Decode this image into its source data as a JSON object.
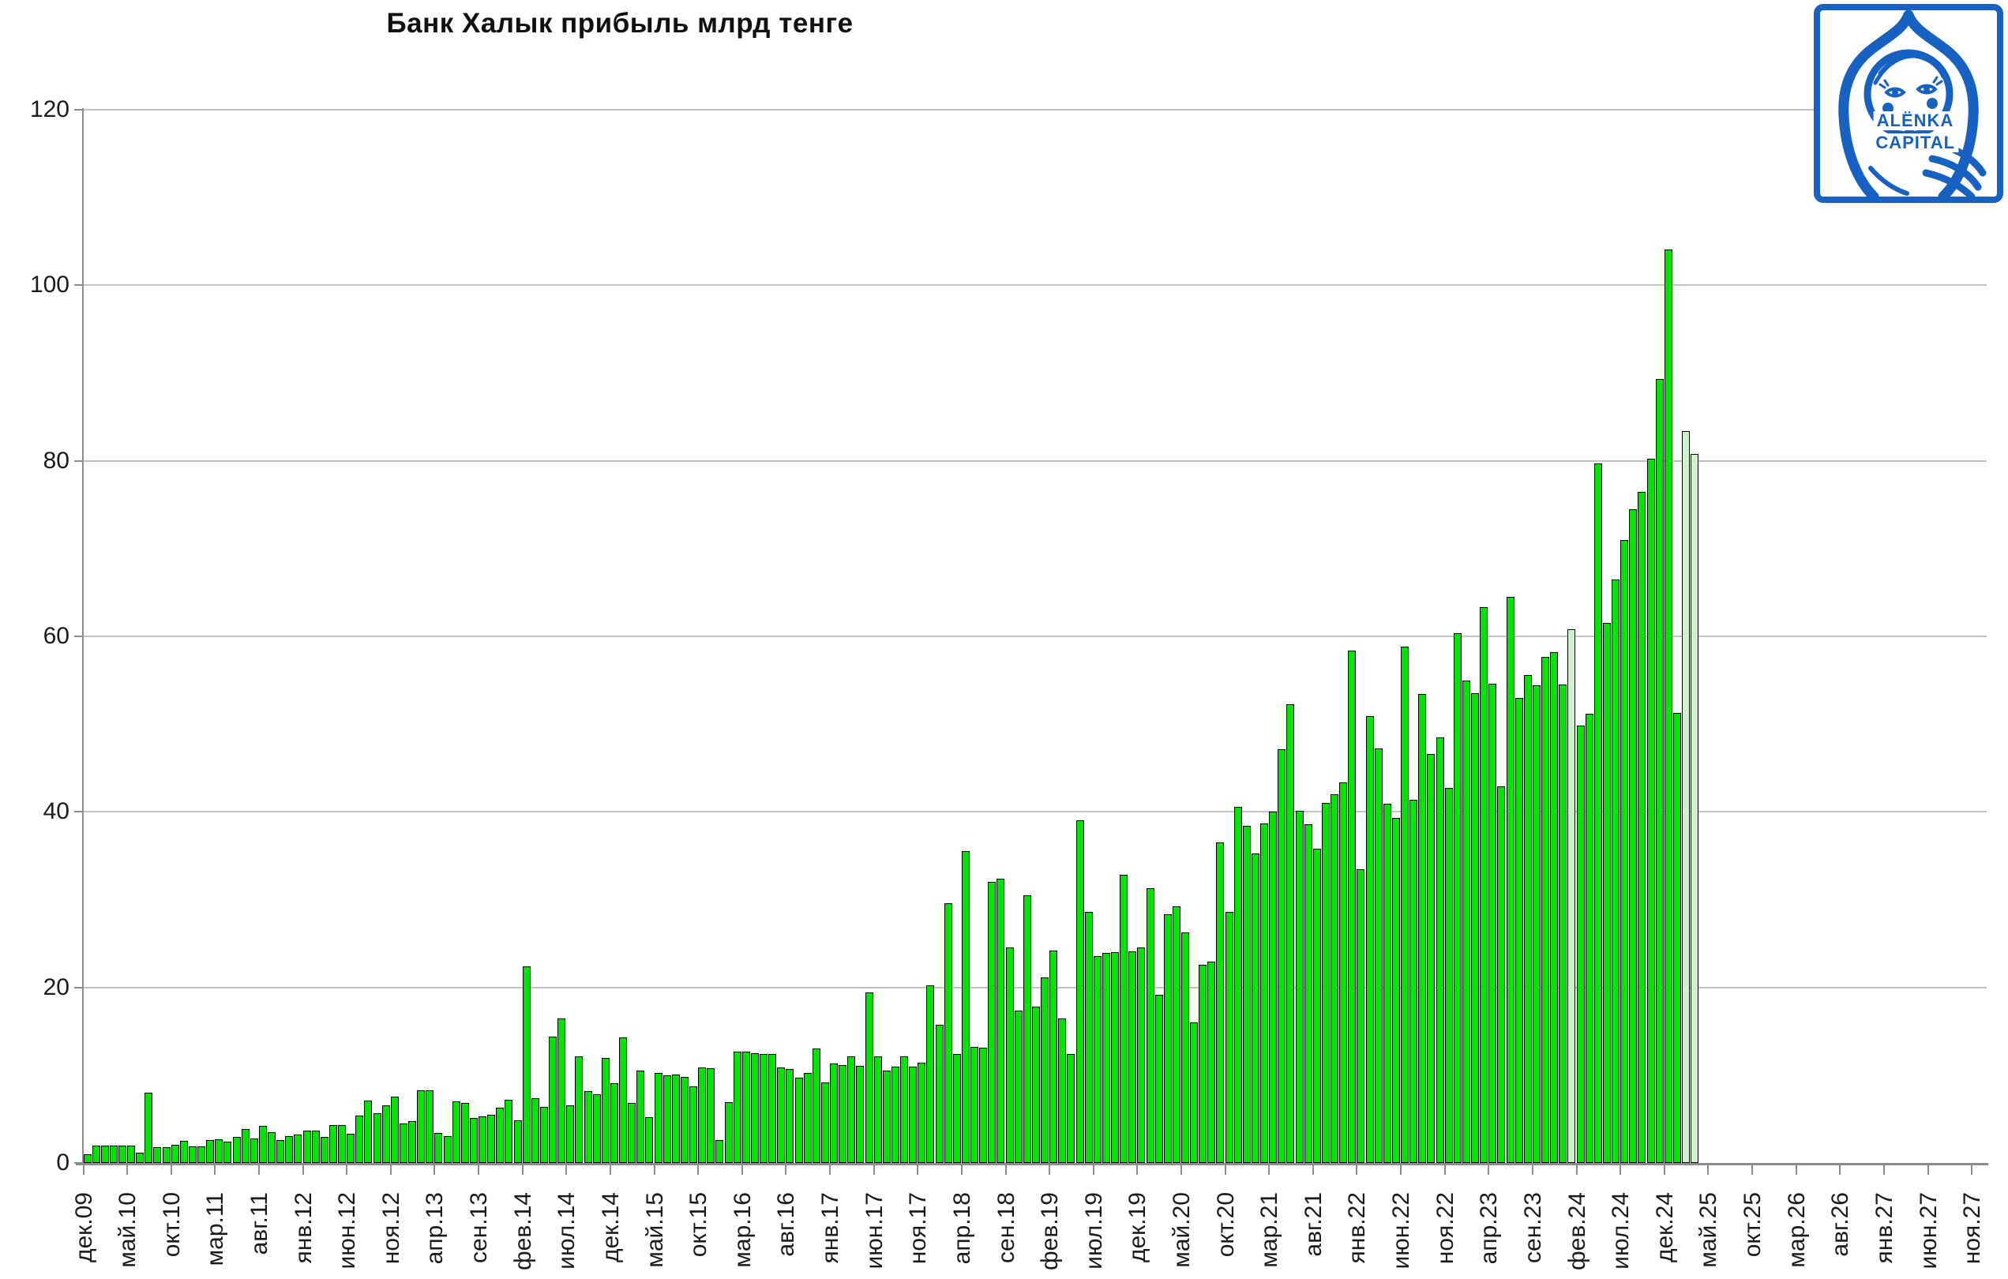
{
  "title": "Банк Халык прибыль млрд тенге",
  "logo": {
    "line1": "ALËNKA",
    "line2": "CAPITAL"
  },
  "chart_data": {
    "type": "bar",
    "title": "Банк Халык прибыль млрд тенге",
    "xlabel": "",
    "ylabel": "",
    "ylim": [
      0,
      120
    ],
    "yticks": [
      0,
      20,
      40,
      60,
      80,
      100,
      120
    ],
    "grid": "horizontal-only",
    "legend": "none",
    "bar_color": "#00e400",
    "forecast_bar_color": "#cdf3cd",
    "bar_border_color": "#000000",
    "start_category": "дек.09",
    "month_names": [
      "янв",
      "фев",
      "мар",
      "апр",
      "май",
      "июн",
      "июл",
      "авг",
      "сен",
      "окт",
      "ноя",
      "дек"
    ],
    "start_month_index": 11,
    "start_year_2digit": 9,
    "total_axis_slots": 216,
    "label_every_n_slots": 5,
    "x_tick_labels": [
      "дек.09",
      "май.10",
      "окт.10",
      "мар.11",
      "авг.11",
      "янв.12",
      "июн.12",
      "ноя.12",
      "апр.13",
      "сен.13",
      "фев.14",
      "июл.14",
      "дек.14",
      "май.15",
      "окт.15",
      "мар.16",
      "авг.16",
      "янв.17",
      "июн.17",
      "ноя.17",
      "апр.18",
      "сен.18",
      "фев.19",
      "июл.19",
      "дек.19",
      "май.20",
      "окт.20",
      "мар.21",
      "авг.21",
      "янв.22",
      "июн.22",
      "ноя.22",
      "апр.23",
      "сен.23",
      "фев.24",
      "июл.24",
      "дек.24",
      "май.25",
      "окт.25",
      "мар.26",
      "авг.26",
      "янв.27",
      "июн.27",
      "ноя.27"
    ],
    "values": [
      1.0,
      2.0,
      2.0,
      2.0,
      2.0,
      2.0,
      1.2,
      8.0,
      1.8,
      1.8,
      2.1,
      2.5,
      1.9,
      1.9,
      2.6,
      2.7,
      2.4,
      3.0,
      3.9,
      2.8,
      4.2,
      3.5,
      2.6,
      3.1,
      3.2,
      3.7,
      3.7,
      3.0,
      4.3,
      4.3,
      3.3,
      5.4,
      7.1,
      5.7,
      6.6,
      7.6,
      4.5,
      4.8,
      8.3,
      8.3,
      3.4,
      3.1,
      7.0,
      6.8,
      5.1,
      5.3,
      5.5,
      6.3,
      7.2,
      4.9,
      22.4,
      7.4,
      6.4,
      14.4,
      16.5,
      6.6,
      12.1,
      8.2,
      7.8,
      12.0,
      9.1,
      14.3,
      6.8,
      10.5,
      5.2,
      10.3,
      10.0,
      10.1,
      9.8,
      8.7,
      10.9,
      10.8,
      2.6,
      6.9,
      12.7,
      12.7,
      12.5,
      12.4,
      12.4,
      10.9,
      10.7,
      9.7,
      10.3,
      13.0,
      9.2,
      11.3,
      11.2,
      12.1,
      11.1,
      19.4,
      12.1,
      10.5,
      11.0,
      12.1,
      11.0,
      11.4,
      20.2,
      15.7,
      29.6,
      12.4,
      35.5,
      13.2,
      13.1,
      32.0,
      32.4,
      24.6,
      17.4,
      30.5,
      17.8,
      21.1,
      24.2,
      16.5,
      12.4,
      39.0,
      28.6,
      23.6,
      23.9,
      24.0,
      32.8,
      24.1,
      24.6,
      31.3,
      19.2,
      28.3,
      29.2,
      26.3,
      16.0,
      22.6,
      22.9,
      36.5,
      28.6,
      40.6,
      38.4,
      35.3,
      38.7,
      40.0,
      47.1,
      52.3,
      40.1,
      38.6,
      35.8,
      41.0,
      42.0,
      43.4,
      58.4,
      33.5,
      50.9,
      47.2,
      40.9,
      39.3,
      58.8,
      41.4,
      53.4,
      46.6,
      48.5,
      42.7,
      60.4,
      55.0,
      53.5,
      63.3,
      54.6,
      42.9,
      64.5,
      53.0,
      55.6,
      54.4,
      57.7,
      58.2,
      54.5,
      60.8,
      49.8,
      51.2,
      79.7,
      61.5,
      66.5,
      71.0,
      74.5,
      76.5,
      80.2,
      89.3,
      104.1,
      51.3,
      83.4,
      80.8
    ],
    "forecast_indices": [
      169,
      182,
      183
    ]
  }
}
